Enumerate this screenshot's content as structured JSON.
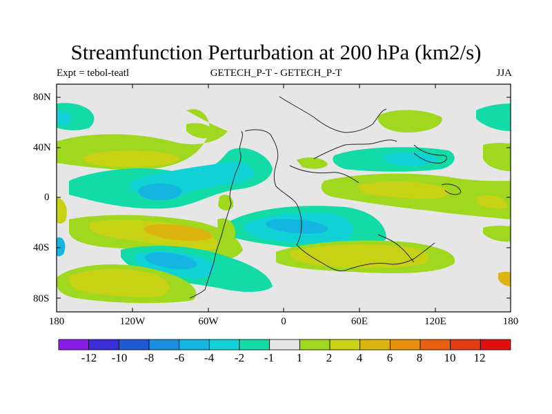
{
  "map": {
    "title": "Streamfunction Perturbation at 200 hPa (km2/s)",
    "left_label": "Expt = tebol-teatl",
    "center_label": "GETECH_P-T - GETECH_P-T",
    "right_label": "JJA",
    "lat_labels": [
      "80N",
      "40N",
      "0",
      "40S",
      "80S"
    ],
    "lon_labels": [
      "180",
      "120W",
      "60W",
      "0",
      "60E",
      "120E",
      "180"
    ]
  },
  "colorbar": {
    "labels": [
      "-12",
      "-10",
      "-8",
      "-6",
      "-4",
      "-2",
      "-1",
      "1",
      "2",
      "4",
      "6",
      "8",
      "10",
      "12"
    ],
    "colors": [
      "#8a1ee6",
      "#3a2ed8",
      "#1e5ad6",
      "#1a8ede",
      "#12b6df",
      "#10d2d6",
      "#12dba8",
      "#e6e6e6",
      "#9fd81e",
      "#c8d214",
      "#dcb410",
      "#e8900e",
      "#e86010",
      "#e43c12",
      "#e01010"
    ]
  }
}
